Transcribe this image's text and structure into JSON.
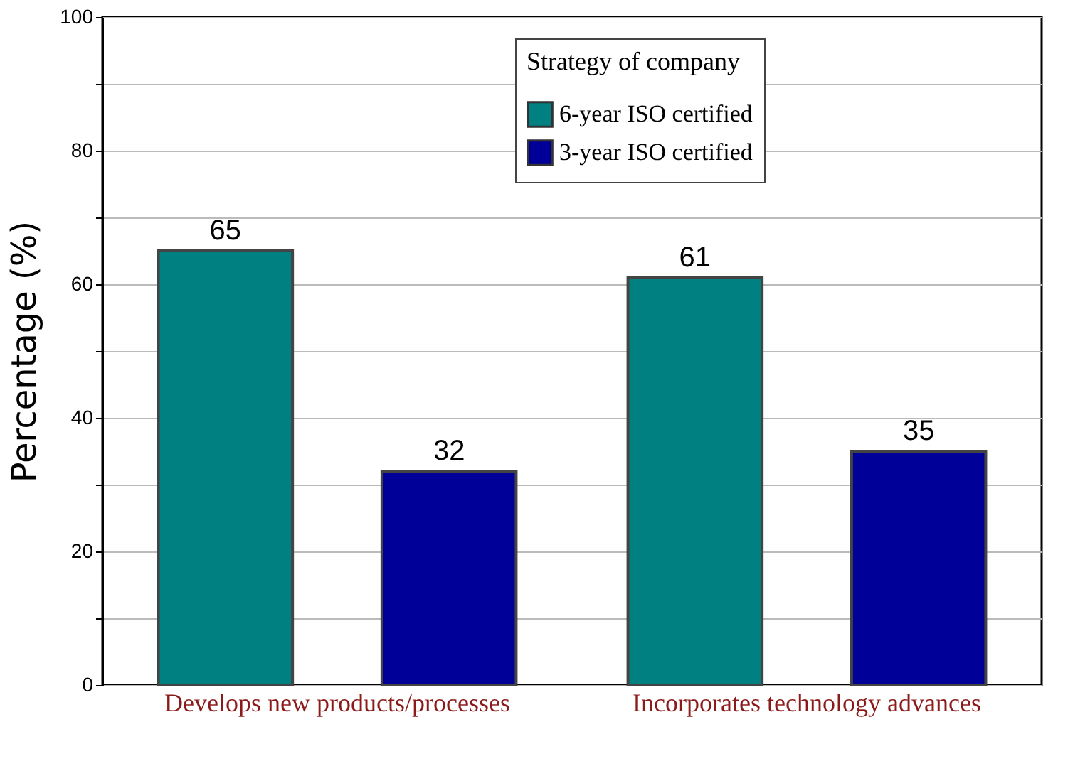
{
  "chart_data": {
    "type": "bar",
    "ylabel": "Percentage (%)",
    "legend_title": "Strategy of company",
    "categories": [
      "Develops new products/processes",
      "Incorporates technology advances"
    ],
    "series": [
      {
        "name": "6-year ISO certified",
        "color": "#008080",
        "values": [
          65,
          61
        ]
      },
      {
        "name": "3-year ISO certified",
        "color": "#000099",
        "values": [
          32,
          35
        ]
      }
    ],
    "ylim": [
      0,
      100
    ],
    "yticks": [
      0,
      {
        "value": 10,
        "label": null
      },
      20,
      {
        "value": 30,
        "label": null
      },
      40,
      {
        "value": 50,
        "label": null
      },
      60,
      {
        "value": 70,
        "label": null
      },
      80,
      {
        "value": 90,
        "label": null
      },
      100
    ],
    "grid": "y",
    "legend": "top",
    "data_labels": true
  }
}
